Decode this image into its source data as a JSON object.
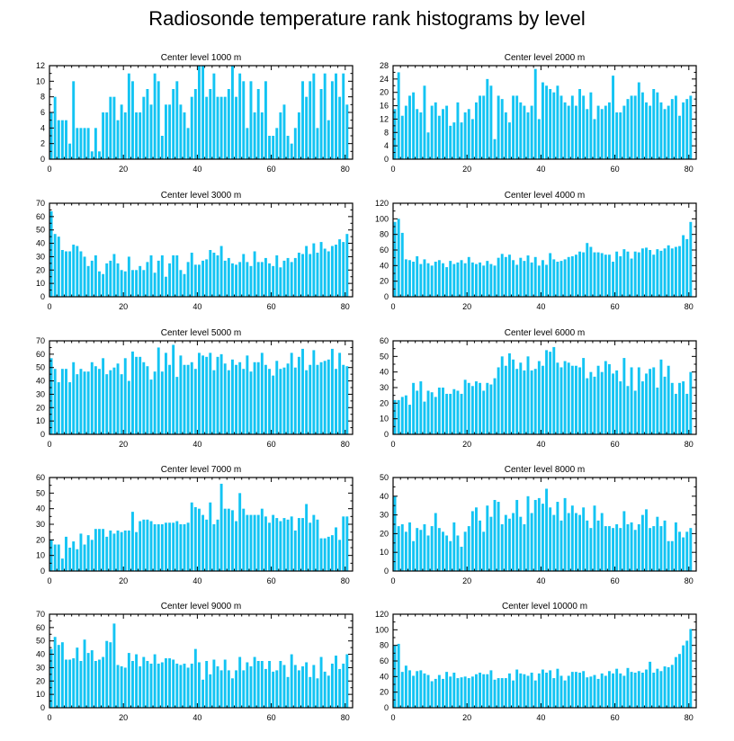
{
  "figure": {
    "title": "Radiosonde temperature rank histograms by level"
  },
  "colors": {
    "bar": "#13c4f3",
    "axis": "#000000"
  },
  "chart_data": [
    {
      "type": "bar",
      "title": "Center level 1000 m",
      "xlim": [
        0,
        82
      ],
      "ylim": [
        0,
        12
      ],
      "xticks": [
        0,
        20,
        40,
        60,
        80
      ],
      "yticks": [
        0,
        2,
        4,
        6,
        8,
        10,
        12
      ],
      "values": [
        6,
        8,
        5,
        5,
        5,
        2,
        10,
        4,
        4,
        4,
        4,
        1,
        4,
        1,
        6,
        6,
        8,
        8,
        5,
        7,
        6,
        11,
        10,
        6,
        6,
        8,
        9,
        7,
        11,
        10,
        3,
        7,
        7,
        9,
        10,
        7,
        6,
        4,
        8,
        9,
        12,
        12,
        8,
        9,
        11,
        8,
        8,
        8,
        9,
        12,
        8,
        11,
        10,
        4,
        10,
        6,
        9,
        6,
        10,
        3,
        3,
        4,
        6,
        7,
        3,
        2,
        4,
        6,
        10,
        8,
        10,
        11,
        4,
        9,
        11,
        5,
        10,
        11,
        8,
        11,
        7
      ]
    },
    {
      "type": "bar",
      "title": "Center level 2000 m",
      "xlim": [
        0,
        82
      ],
      "ylim": [
        0,
        28
      ],
      "xticks": [
        0,
        20,
        40,
        60,
        80
      ],
      "yticks": [
        0,
        4,
        8,
        12,
        16,
        20,
        24,
        28
      ],
      "values": [
        15,
        26,
        13,
        16,
        19,
        20,
        15,
        14,
        22,
        8,
        16,
        17,
        13,
        15,
        16,
        10,
        11,
        17,
        11,
        14,
        15,
        12,
        17,
        19,
        19,
        24,
        22,
        6,
        19,
        18,
        14,
        11,
        19,
        19,
        17,
        16,
        14,
        16,
        27,
        12,
        23,
        22,
        21,
        20,
        22,
        19,
        17,
        16,
        19,
        16,
        21,
        19,
        15,
        20,
        12,
        16,
        15,
        16,
        17,
        25,
        14,
        14,
        16,
        18,
        19,
        19,
        23,
        20,
        17,
        16,
        21,
        20,
        17,
        15,
        16,
        18,
        19,
        13,
        17,
        18,
        19
      ]
    },
    {
      "type": "bar",
      "title": "Center level 3000 m",
      "xlim": [
        0,
        82
      ],
      "ylim": [
        0,
        70
      ],
      "xticks": [
        0,
        20,
        40,
        60,
        80
      ],
      "yticks": [
        0,
        10,
        20,
        30,
        40,
        50,
        60,
        70
      ],
      "values": [
        64,
        47,
        45,
        35,
        34,
        34,
        39,
        38,
        34,
        30,
        23,
        27,
        31,
        19,
        17,
        25,
        27,
        32,
        25,
        20,
        19,
        30,
        20,
        20,
        23,
        20,
        26,
        31,
        18,
        27,
        31,
        15,
        25,
        31,
        31,
        20,
        17,
        26,
        33,
        24,
        24,
        27,
        28,
        35,
        33,
        31,
        38,
        27,
        29,
        25,
        24,
        26,
        32,
        26,
        23,
        34,
        26,
        26,
        29,
        25,
        23,
        31,
        22,
        27,
        29,
        26,
        29,
        33,
        32,
        38,
        32,
        40,
        33,
        41,
        36,
        34,
        38,
        39,
        43,
        41,
        47
      ]
    },
    {
      "type": "bar",
      "title": "Center level 4000 m",
      "xlim": [
        0,
        82
      ],
      "ylim": [
        0,
        120
      ],
      "xticks": [
        0,
        20,
        40,
        60,
        80
      ],
      "yticks": [
        0,
        20,
        40,
        60,
        80,
        100,
        120
      ],
      "values": [
        96,
        100,
        82,
        48,
        47,
        45,
        52,
        42,
        48,
        43,
        40,
        45,
        47,
        43,
        38,
        46,
        42,
        44,
        47,
        43,
        51,
        44,
        42,
        44,
        40,
        46,
        42,
        40,
        50,
        55,
        51,
        54,
        47,
        41,
        50,
        46,
        53,
        44,
        51,
        40,
        47,
        41,
        56,
        48,
        45,
        46,
        48,
        51,
        52,
        54,
        58,
        57,
        69,
        64,
        57,
        57,
        56,
        54,
        54,
        45,
        58,
        52,
        61,
        58,
        49,
        58,
        57,
        62,
        63,
        60,
        54,
        61,
        59,
        62,
        66,
        62,
        64,
        65,
        79,
        74,
        96
      ]
    },
    {
      "type": "bar",
      "title": "Center level 5000 m",
      "xlim": [
        0,
        82
      ],
      "ylim": [
        0,
        70
      ],
      "xticks": [
        0,
        20,
        40,
        60,
        80
      ],
      "yticks": [
        0,
        10,
        20,
        30,
        40,
        50,
        60,
        70
      ],
      "values": [
        57,
        49,
        39,
        49,
        49,
        39,
        54,
        45,
        49,
        47,
        47,
        54,
        51,
        49,
        57,
        45,
        48,
        50,
        53,
        45,
        57,
        40,
        62,
        58,
        58,
        54,
        51,
        41,
        47,
        65,
        47,
        61,
        52,
        67,
        43,
        59,
        52,
        52,
        54,
        49,
        61,
        59,
        58,
        61,
        48,
        58,
        60,
        53,
        48,
        56,
        52,
        54,
        49,
        59,
        47,
        54,
        54,
        61,
        52,
        49,
        44,
        55,
        49,
        50,
        53,
        61,
        50,
        58,
        64,
        48,
        52,
        63,
        52,
        54,
        55,
        56,
        64,
        49,
        61,
        52,
        51
      ]
    },
    {
      "type": "bar",
      "title": "Center level 6000 m",
      "xlim": [
        0,
        82
      ],
      "ylim": [
        0,
        60
      ],
      "xticks": [
        0,
        20,
        40,
        60,
        80
      ],
      "yticks": [
        0,
        10,
        20,
        30,
        40,
        50,
        60
      ],
      "values": [
        22,
        22,
        24,
        25,
        19,
        33,
        28,
        34,
        21,
        28,
        27,
        24,
        30,
        30,
        26,
        26,
        29,
        28,
        26,
        35,
        33,
        31,
        34,
        33,
        28,
        33,
        32,
        36,
        43,
        50,
        44,
        52,
        48,
        42,
        46,
        41,
        50,
        41,
        42,
        47,
        44,
        54,
        53,
        56,
        46,
        43,
        47,
        46,
        44,
        44,
        43,
        49,
        36,
        40,
        37,
        44,
        40,
        47,
        45,
        39,
        41,
        34,
        49,
        31,
        43,
        28,
        43,
        34,
        39,
        42,
        43,
        30,
        48,
        37,
        44,
        33,
        26,
        33,
        34,
        26,
        40
      ]
    },
    {
      "type": "bar",
      "title": "Center level 7000 m",
      "xlim": [
        0,
        82
      ],
      "ylim": [
        0,
        60
      ],
      "xticks": [
        0,
        20,
        40,
        60,
        80
      ],
      "yticks": [
        0,
        10,
        20,
        30,
        40,
        50,
        60
      ],
      "values": [
        20,
        17,
        17,
        8,
        22,
        15,
        19,
        14,
        24,
        17,
        23,
        20,
        27,
        27,
        27,
        22,
        26,
        24,
        26,
        25,
        26,
        26,
        38,
        25,
        32,
        33,
        33,
        32,
        30,
        30,
        30,
        31,
        31,
        31,
        32,
        30,
        30,
        31,
        44,
        41,
        40,
        36,
        33,
        44,
        30,
        33,
        56,
        40,
        40,
        39,
        32,
        50,
        40,
        36,
        36,
        36,
        36,
        40,
        35,
        31,
        36,
        34,
        32,
        34,
        33,
        35,
        26,
        34,
        34,
        43,
        31,
        36,
        33,
        21,
        21,
        22,
        23,
        28,
        20,
        35,
        35
      ]
    },
    {
      "type": "bar",
      "title": "Center level 8000 m",
      "xlim": [
        0,
        82
      ],
      "ylim": [
        0,
        50
      ],
      "xticks": [
        0,
        20,
        40,
        60,
        80
      ],
      "yticks": [
        0,
        10,
        20,
        30,
        40,
        50
      ],
      "values": [
        40,
        24,
        25,
        21,
        26,
        16,
        23,
        22,
        25,
        19,
        24,
        31,
        23,
        21,
        19,
        16,
        26,
        19,
        13,
        21,
        24,
        32,
        34,
        27,
        21,
        35,
        29,
        38,
        37,
        25,
        30,
        28,
        31,
        38,
        29,
        25,
        40,
        31,
        38,
        39,
        36,
        44,
        34,
        30,
        37,
        27,
        39,
        31,
        35,
        31,
        30,
        34,
        27,
        23,
        35,
        27,
        31,
        24,
        24,
        23,
        25,
        23,
        32,
        25,
        26,
        22,
        25,
        30,
        33,
        23,
        24,
        29,
        24,
        27,
        16,
        16,
        26,
        21,
        18,
        21,
        23
      ]
    },
    {
      "type": "bar",
      "title": "Center level 9000 m",
      "xlim": [
        0,
        82
      ],
      "ylim": [
        0,
        70
      ],
      "xticks": [
        0,
        20,
        40,
        60,
        80
      ],
      "yticks": [
        0,
        10,
        20,
        30,
        40,
        50,
        60,
        70
      ],
      "values": [
        44,
        53,
        47,
        49,
        36,
        36,
        37,
        45,
        35,
        51,
        41,
        43,
        35,
        36,
        38,
        50,
        49,
        63,
        32,
        31,
        30,
        41,
        35,
        40,
        31,
        38,
        35,
        33,
        40,
        33,
        34,
        37,
        37,
        36,
        33,
        32,
        33,
        30,
        33,
        44,
        34,
        21,
        35,
        25,
        36,
        31,
        28,
        36,
        28,
        22,
        28,
        38,
        28,
        34,
        31,
        38,
        35,
        35,
        29,
        35,
        27,
        28,
        35,
        32,
        23,
        40,
        32,
        28,
        31,
        34,
        23,
        32,
        22,
        38,
        27,
        24,
        33,
        39,
        29,
        33,
        40
      ]
    },
    {
      "type": "bar",
      "title": "Center level 10000 m",
      "xlim": [
        0,
        82
      ],
      "ylim": [
        0,
        120
      ],
      "xticks": [
        0,
        20,
        40,
        60,
        80
      ],
      "yticks": [
        0,
        20,
        40,
        60,
        80,
        100,
        120
      ],
      "values": [
        80,
        82,
        46,
        54,
        48,
        41,
        47,
        48,
        44,
        42,
        34,
        37,
        42,
        37,
        46,
        40,
        45,
        38,
        39,
        40,
        38,
        40,
        43,
        45,
        43,
        43,
        48,
        36,
        38,
        38,
        38,
        44,
        35,
        49,
        44,
        43,
        41,
        45,
        35,
        44,
        49,
        45,
        48,
        38,
        50,
        41,
        35,
        41,
        46,
        46,
        45,
        47,
        39,
        40,
        42,
        37,
        44,
        41,
        47,
        44,
        50,
        44,
        41,
        51,
        46,
        45,
        47,
        45,
        49,
        59,
        45,
        50,
        47,
        53,
        52,
        55,
        65,
        69,
        80,
        86,
        101
      ]
    }
  ]
}
